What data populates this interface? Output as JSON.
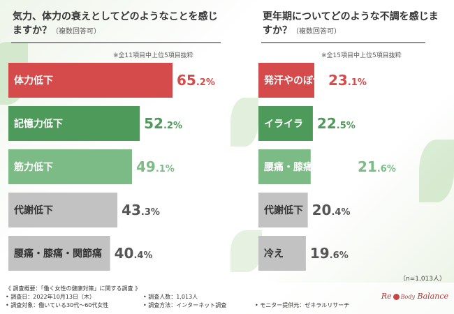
{
  "colors": {
    "red": "#d54a4a",
    "green_dark": "#4e9a5a",
    "green_light": "#7dbb86",
    "gray": "#c2c2c2"
  },
  "left": {
    "title": "気力、体力の衰えとしてどのようなことを感じますか？",
    "title_note": "（複数回答可）",
    "subnote": "※全11項目中上位5項目抜粋"
  },
  "right": {
    "title": "更年期についてどのような不調を感じますか？",
    "title_note": "（複数回答可）",
    "subnote": "※全15項目中上位5項目抜粋"
  },
  "chart_data": [
    {
      "type": "bar",
      "orientation": "horizontal",
      "title": "気力、体力の衰えとしてどのようなことを感じますか？（複数回答可）",
      "unit": "%",
      "categories": [
        "体力低下",
        "記憶力低下",
        "筋力低下",
        "代謝低下",
        "腰痛・膝痛・関節痛"
      ],
      "values": [
        65.2,
        52.2,
        49.1,
        43.3,
        40.4
      ],
      "bar_colors": [
        "red",
        "green_dark",
        "green_light",
        "gray",
        "gray"
      ],
      "xlim": [
        0,
        100
      ]
    },
    {
      "type": "bar",
      "orientation": "horizontal",
      "title": "更年期についてどのような不調を感じますか？（複数回答可）",
      "unit": "%",
      "categories": [
        "発汗やのぼせ",
        "イライラ",
        "腰痛・膝痛・関節痛",
        "代謝低下",
        "冷え"
      ],
      "values": [
        23.1,
        22.5,
        21.6,
        20.4,
        19.6
      ],
      "bar_colors": [
        "red",
        "green_dark",
        "green_light",
        "gray",
        "gray"
      ],
      "xlim": [
        0,
        100
      ]
    }
  ],
  "sample_size": "（n=1,013人）",
  "footer": {
    "overview": "《 調査概要：「働く女性の健康対策」に関する調査 》",
    "date": "• 調査日：2022年10月13日（木）",
    "target": "• 調査対象：働いている30代〜60代女性",
    "count": "• 調査人数：1,013人",
    "method": "• 調査方法：インターネット調査",
    "provider": "• モニター提供元：ゼネラルリサーチ"
  },
  "logo": {
    "pre": "Re",
    "mid": "Body",
    "post": "Balance"
  }
}
